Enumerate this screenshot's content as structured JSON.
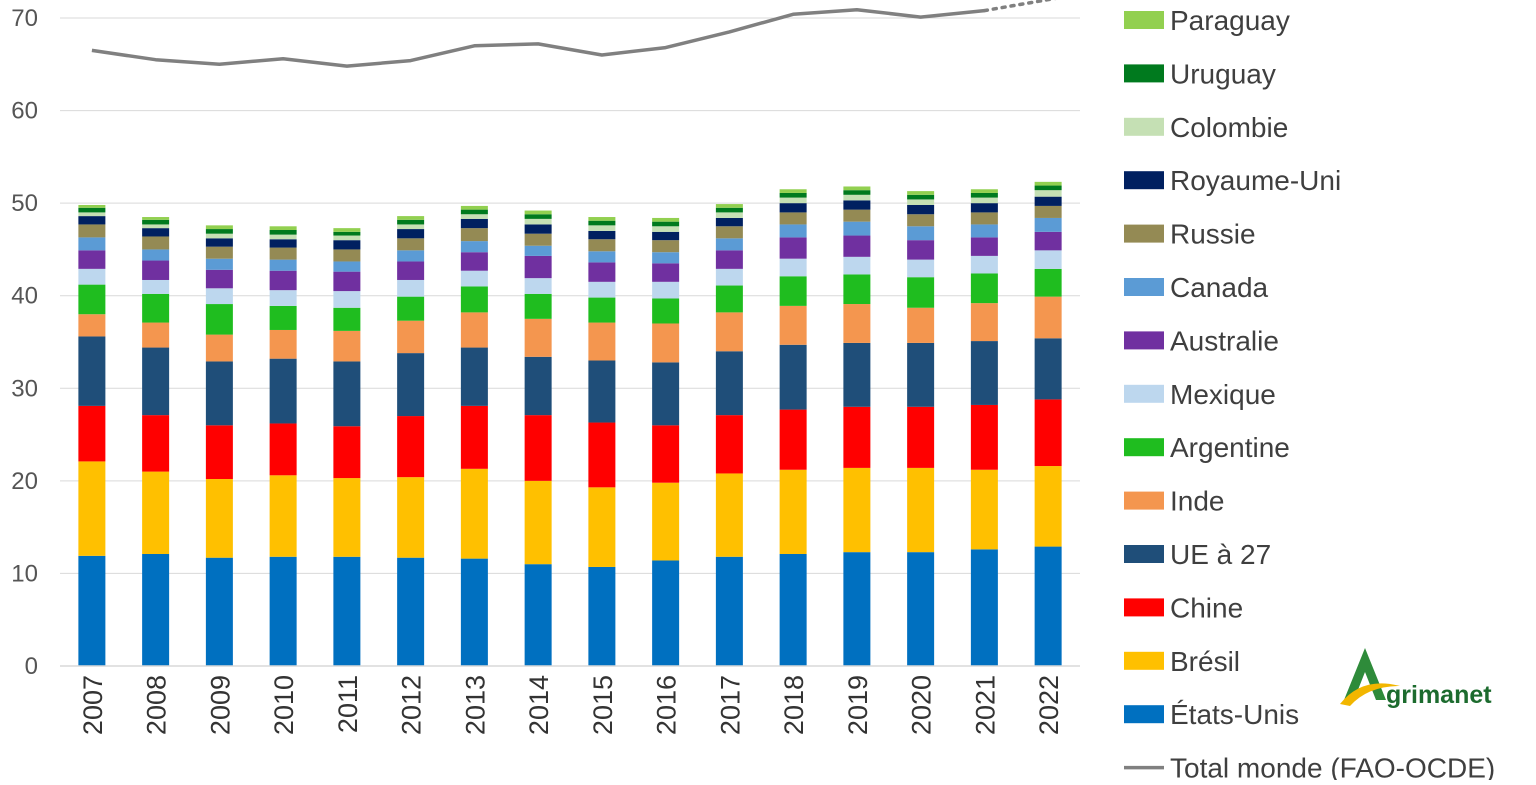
{
  "chart_data": {
    "type": "bar",
    "stacked": true,
    "categories": [
      "2007",
      "2008",
      "2009",
      "2010",
      "2011",
      "2012",
      "2013",
      "2014",
      "2015",
      "2016",
      "2017",
      "2018",
      "2019",
      "2020",
      "2021",
      "2022"
    ],
    "title": "",
    "xlabel": "",
    "ylabel": "",
    "ylim": [
      0,
      72
    ],
    "yticks": [
      0,
      10,
      20,
      30,
      40,
      50,
      60,
      70
    ],
    "grid": true,
    "legend_position": "right",
    "series": [
      {
        "name": "États-Unis",
        "color": "#0070c0",
        "values": [
          11.9,
          12.1,
          11.7,
          11.8,
          11.8,
          11.7,
          11.6,
          11.0,
          10.7,
          11.4,
          11.8,
          12.1,
          12.3,
          12.3,
          12.6,
          12.9
        ]
      },
      {
        "name": "Brésil",
        "color": "#ffc000",
        "values": [
          10.2,
          8.9,
          8.5,
          8.8,
          8.5,
          8.7,
          9.7,
          9.0,
          8.6,
          8.4,
          9.0,
          9.1,
          9.1,
          9.1,
          8.6,
          8.7
        ]
      },
      {
        "name": "Chine",
        "color": "#ff0000",
        "values": [
          6.0,
          6.1,
          5.8,
          5.6,
          5.6,
          6.6,
          6.8,
          7.1,
          7.0,
          6.2,
          6.3,
          6.5,
          6.6,
          6.6,
          7.0,
          7.2
        ]
      },
      {
        "name": "UE à 27",
        "color": "#1f4e79",
        "values": [
          7.5,
          7.3,
          6.9,
          7.0,
          7.0,
          6.8,
          6.3,
          6.3,
          6.7,
          6.8,
          6.9,
          7.0,
          6.9,
          6.9,
          6.9,
          6.6
        ]
      },
      {
        "name": "Inde",
        "color": "#f4964f",
        "values": [
          2.4,
          2.7,
          2.9,
          3.1,
          3.3,
          3.5,
          3.8,
          4.1,
          4.1,
          4.2,
          4.2,
          4.2,
          4.2,
          3.8,
          4.1,
          4.5
        ]
      },
      {
        "name": "Argentine",
        "color": "#1fbd1f",
        "values": [
          3.2,
          3.1,
          3.3,
          2.6,
          2.5,
          2.6,
          2.8,
          2.7,
          2.7,
          2.7,
          2.9,
          3.2,
          3.2,
          3.3,
          3.2,
          3.0
        ]
      },
      {
        "name": "Mexique",
        "color": "#bdd7ee",
        "values": [
          1.7,
          1.5,
          1.7,
          1.7,
          1.8,
          1.8,
          1.7,
          1.7,
          1.7,
          1.8,
          1.8,
          1.9,
          1.9,
          1.9,
          1.9,
          2.0
        ]
      },
      {
        "name": "Australie",
        "color": "#7030a0",
        "values": [
          2.0,
          2.1,
          2.0,
          2.1,
          2.1,
          2.0,
          2.0,
          2.4,
          2.1,
          2.0,
          2.0,
          2.3,
          2.3,
          2.1,
          2.0,
          2.0
        ]
      },
      {
        "name": "Canada",
        "color": "#5b9bd5",
        "values": [
          1.4,
          1.2,
          1.2,
          1.2,
          1.1,
          1.2,
          1.2,
          1.1,
          1.2,
          1.2,
          1.3,
          1.4,
          1.5,
          1.5,
          1.4,
          1.5
        ]
      },
      {
        "name": "Russie",
        "color": "#948a54",
        "values": [
          1.4,
          1.4,
          1.3,
          1.3,
          1.3,
          1.3,
          1.4,
          1.3,
          1.3,
          1.3,
          1.3,
          1.3,
          1.3,
          1.3,
          1.3,
          1.3
        ]
      },
      {
        "name": "Royaume-Uni",
        "color": "#002060",
        "values": [
          0.9,
          0.9,
          0.9,
          0.9,
          1.0,
          1.0,
          1.0,
          1.0,
          0.9,
          0.9,
          0.9,
          1.0,
          1.0,
          1.0,
          1.0,
          1.0
        ]
      },
      {
        "name": "Colombie",
        "color": "#c5e0b4",
        "values": [
          0.4,
          0.4,
          0.5,
          0.5,
          0.5,
          0.5,
          0.5,
          0.6,
          0.6,
          0.6,
          0.6,
          0.6,
          0.6,
          0.6,
          0.6,
          0.7
        ]
      },
      {
        "name": "Uruguay",
        "color": "#007a1e",
        "values": [
          0.5,
          0.5,
          0.5,
          0.5,
          0.4,
          0.5,
          0.5,
          0.5,
          0.5,
          0.5,
          0.5,
          0.5,
          0.5,
          0.5,
          0.5,
          0.5
        ]
      },
      {
        "name": "Paraguay",
        "color": "#92d050",
        "values": [
          0.3,
          0.3,
          0.4,
          0.4,
          0.4,
          0.4,
          0.4,
          0.4,
          0.4,
          0.4,
          0.4,
          0.4,
          0.4,
          0.4,
          0.4,
          0.4
        ]
      }
    ],
    "line_series": {
      "name": "Total monde (FAO-OCDE)",
      "color": "#808080",
      "values": [
        66.5,
        65.5,
        65.0,
        65.6,
        64.8,
        65.4,
        67.0,
        67.2,
        66.0,
        66.8,
        68.5,
        70.4,
        70.9,
        70.1,
        70.8,
        72.2
      ],
      "dotted_from_index": 14
    }
  },
  "logo": {
    "text": "grimanet",
    "mark_letter": "A"
  }
}
